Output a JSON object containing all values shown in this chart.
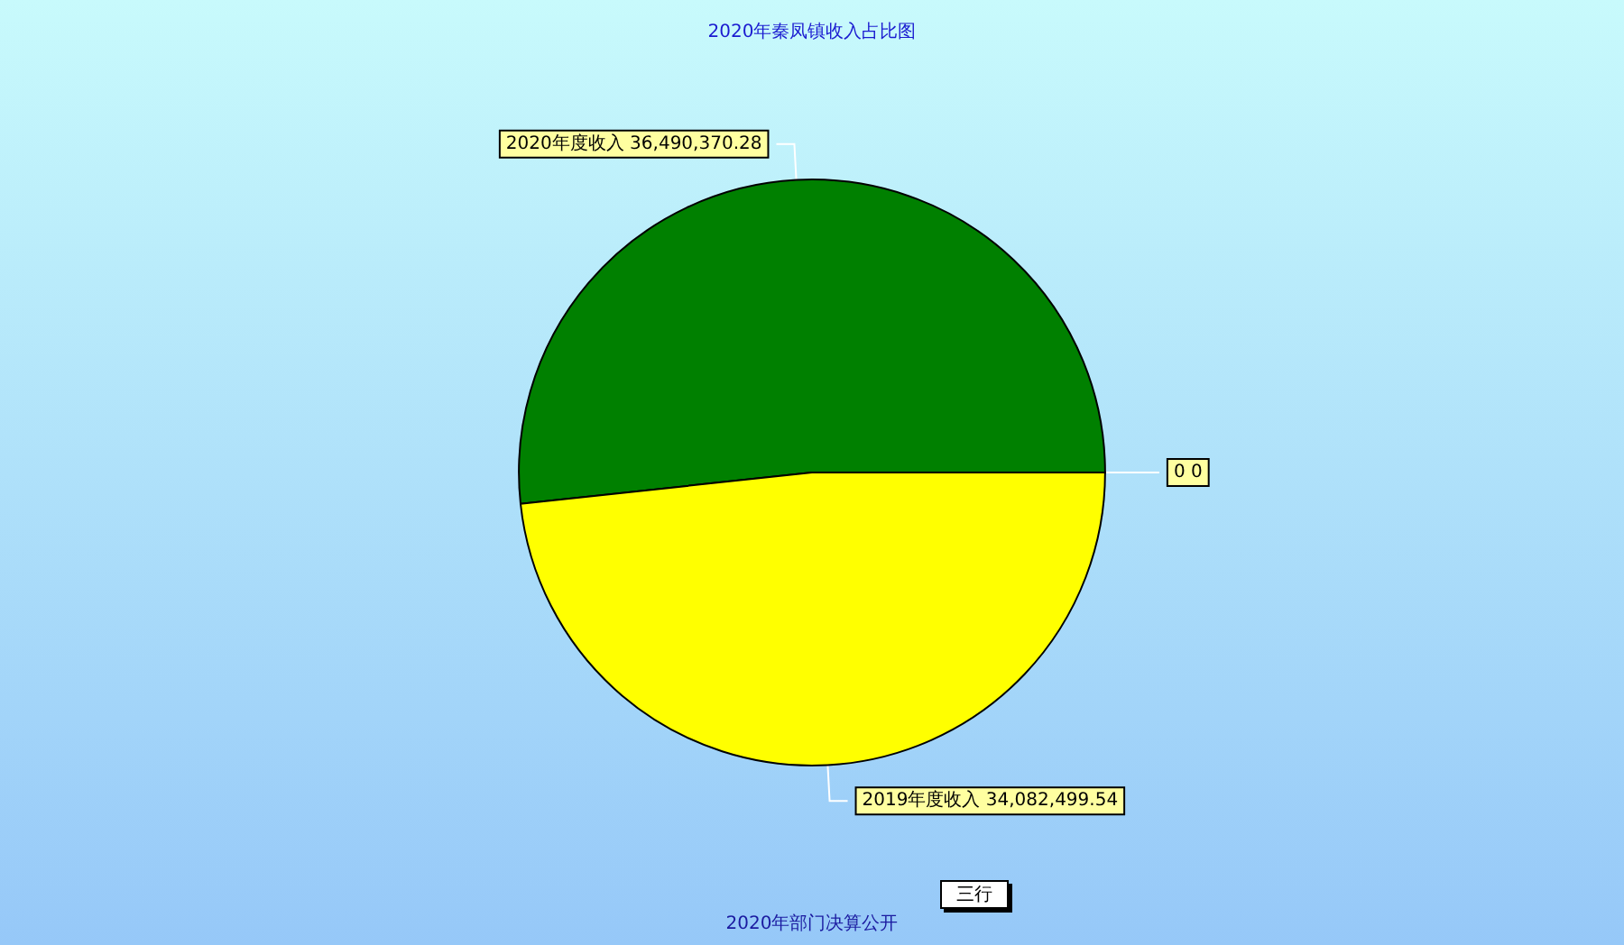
{
  "chart_data": {
    "type": "pie",
    "title": "2020年秦凤镇收入占比图",
    "categories": [
      "2020年度收入",
      "2019年度收入",
      "0"
    ],
    "values": [
      36490370.28,
      34082499.54,
      0
    ],
    "value_labels": [
      "36,490,370.28",
      "34,082,499.54",
      "0"
    ],
    "colors": [
      "#008000",
      "#ffff00",
      "#ff0000"
    ],
    "annotations": [
      "三行",
      "2020年部门决算公开"
    ]
  }
}
